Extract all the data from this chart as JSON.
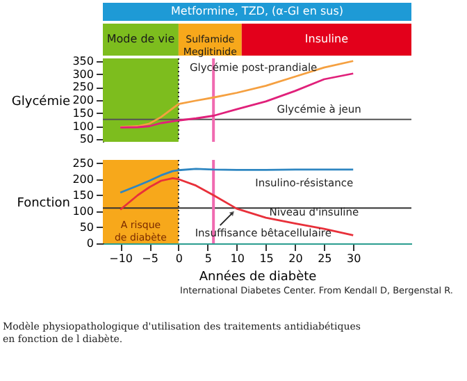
{
  "chart_data": [
    {
      "type": "line",
      "ylabel": "Glycémie",
      "xlim": [
        -13,
        40
      ],
      "ylim": [
        40,
        360
      ],
      "yticks": [
        50,
        100,
        150,
        200,
        250,
        300,
        350
      ],
      "tick_labels": "y",
      "grid": false,
      "marker": "none",
      "x": [
        -10,
        -7,
        -5,
        -3,
        0,
        3,
        6,
        10,
        15,
        20,
        25,
        30
      ],
      "series": [
        {
          "name": "Glycémie post-prandiale",
          "color": "#f5a040",
          "values": [
            97,
            100,
            110,
            135,
            185,
            198,
            210,
            228,
            255,
            290,
            325,
            350
          ]
        },
        {
          "name": "Glycémie à jeun",
          "color": "#e0207a",
          "values": [
            95,
            96,
            100,
            112,
            122,
            130,
            140,
            165,
            195,
            235,
            280,
            302
          ]
        }
      ],
      "bands": [
        {
          "axis": "x",
          "from": -13,
          "to": 0,
          "label": "Mode de vie",
          "color": "#7dbd1e"
        }
      ],
      "ref_lines": [
        {
          "axis": "y",
          "value": 126,
          "color": "#555555",
          "line_style": "solid"
        },
        {
          "axis": "x",
          "value": 0,
          "color": "#222222",
          "line_style": "dotted"
        },
        {
          "axis": "x",
          "value": 6,
          "color": "#f06ab0",
          "line_style": "solid"
        }
      ],
      "annotations": [
        "Metformine, TZD, (α-GI en sus)",
        "Sulfamide\nMeglitinide",
        "Insuline"
      ]
    },
    {
      "type": "line",
      "ylabel": "Fonction",
      "xlabel": "Années de diabète",
      "xlim": [
        -13,
        40
      ],
      "ylim": [
        0,
        260
      ],
      "yticks": [
        0,
        50,
        100,
        150,
        200,
        250
      ],
      "xticks": [
        -10,
        -5,
        0,
        5,
        10,
        15,
        20,
        25,
        30
      ],
      "grid": false,
      "marker": "none",
      "x": [
        -10,
        -7,
        -5,
        -3,
        -1,
        0,
        3,
        6,
        10,
        15,
        20,
        25,
        30
      ],
      "series": [
        {
          "name": "Insulino-résistance",
          "color": "#2e86c1",
          "values": [
            158,
            180,
            195,
            212,
            225,
            228,
            232,
            230,
            229,
            229,
            230,
            230,
            230
          ]
        },
        {
          "name": "Niveau d'insuline",
          "color": "#e8303a",
          "values": [
            105,
            150,
            175,
            195,
            203,
            200,
            180,
            150,
            108,
            80,
            62,
            45,
            25
          ]
        }
      ],
      "bands": [
        {
          "axis": "x",
          "from": -13,
          "to": 0,
          "label": "A risque\nde diabète",
          "color": "#f7a81b"
        }
      ],
      "ref_lines": [
        {
          "axis": "y",
          "value": 110,
          "color": "#333333",
          "line_style": "solid"
        },
        {
          "axis": "x",
          "value": 0,
          "color": "#222222",
          "line_style": "dotted"
        },
        {
          "axis": "x",
          "value": 6,
          "color": "#f06ab0",
          "line_style": "solid"
        }
      ],
      "annotations": [
        {
          "text": "Insuffisance bêtacellulaire",
          "x": 10,
          "y": 108
        },
        "International Diabetes Center. From Kendall D, Bergenstal R.",
        "Modèle physiopathologique d'utilisation des traitements antidiabétiques en fonction de l diabète."
      ]
    }
  ]
}
